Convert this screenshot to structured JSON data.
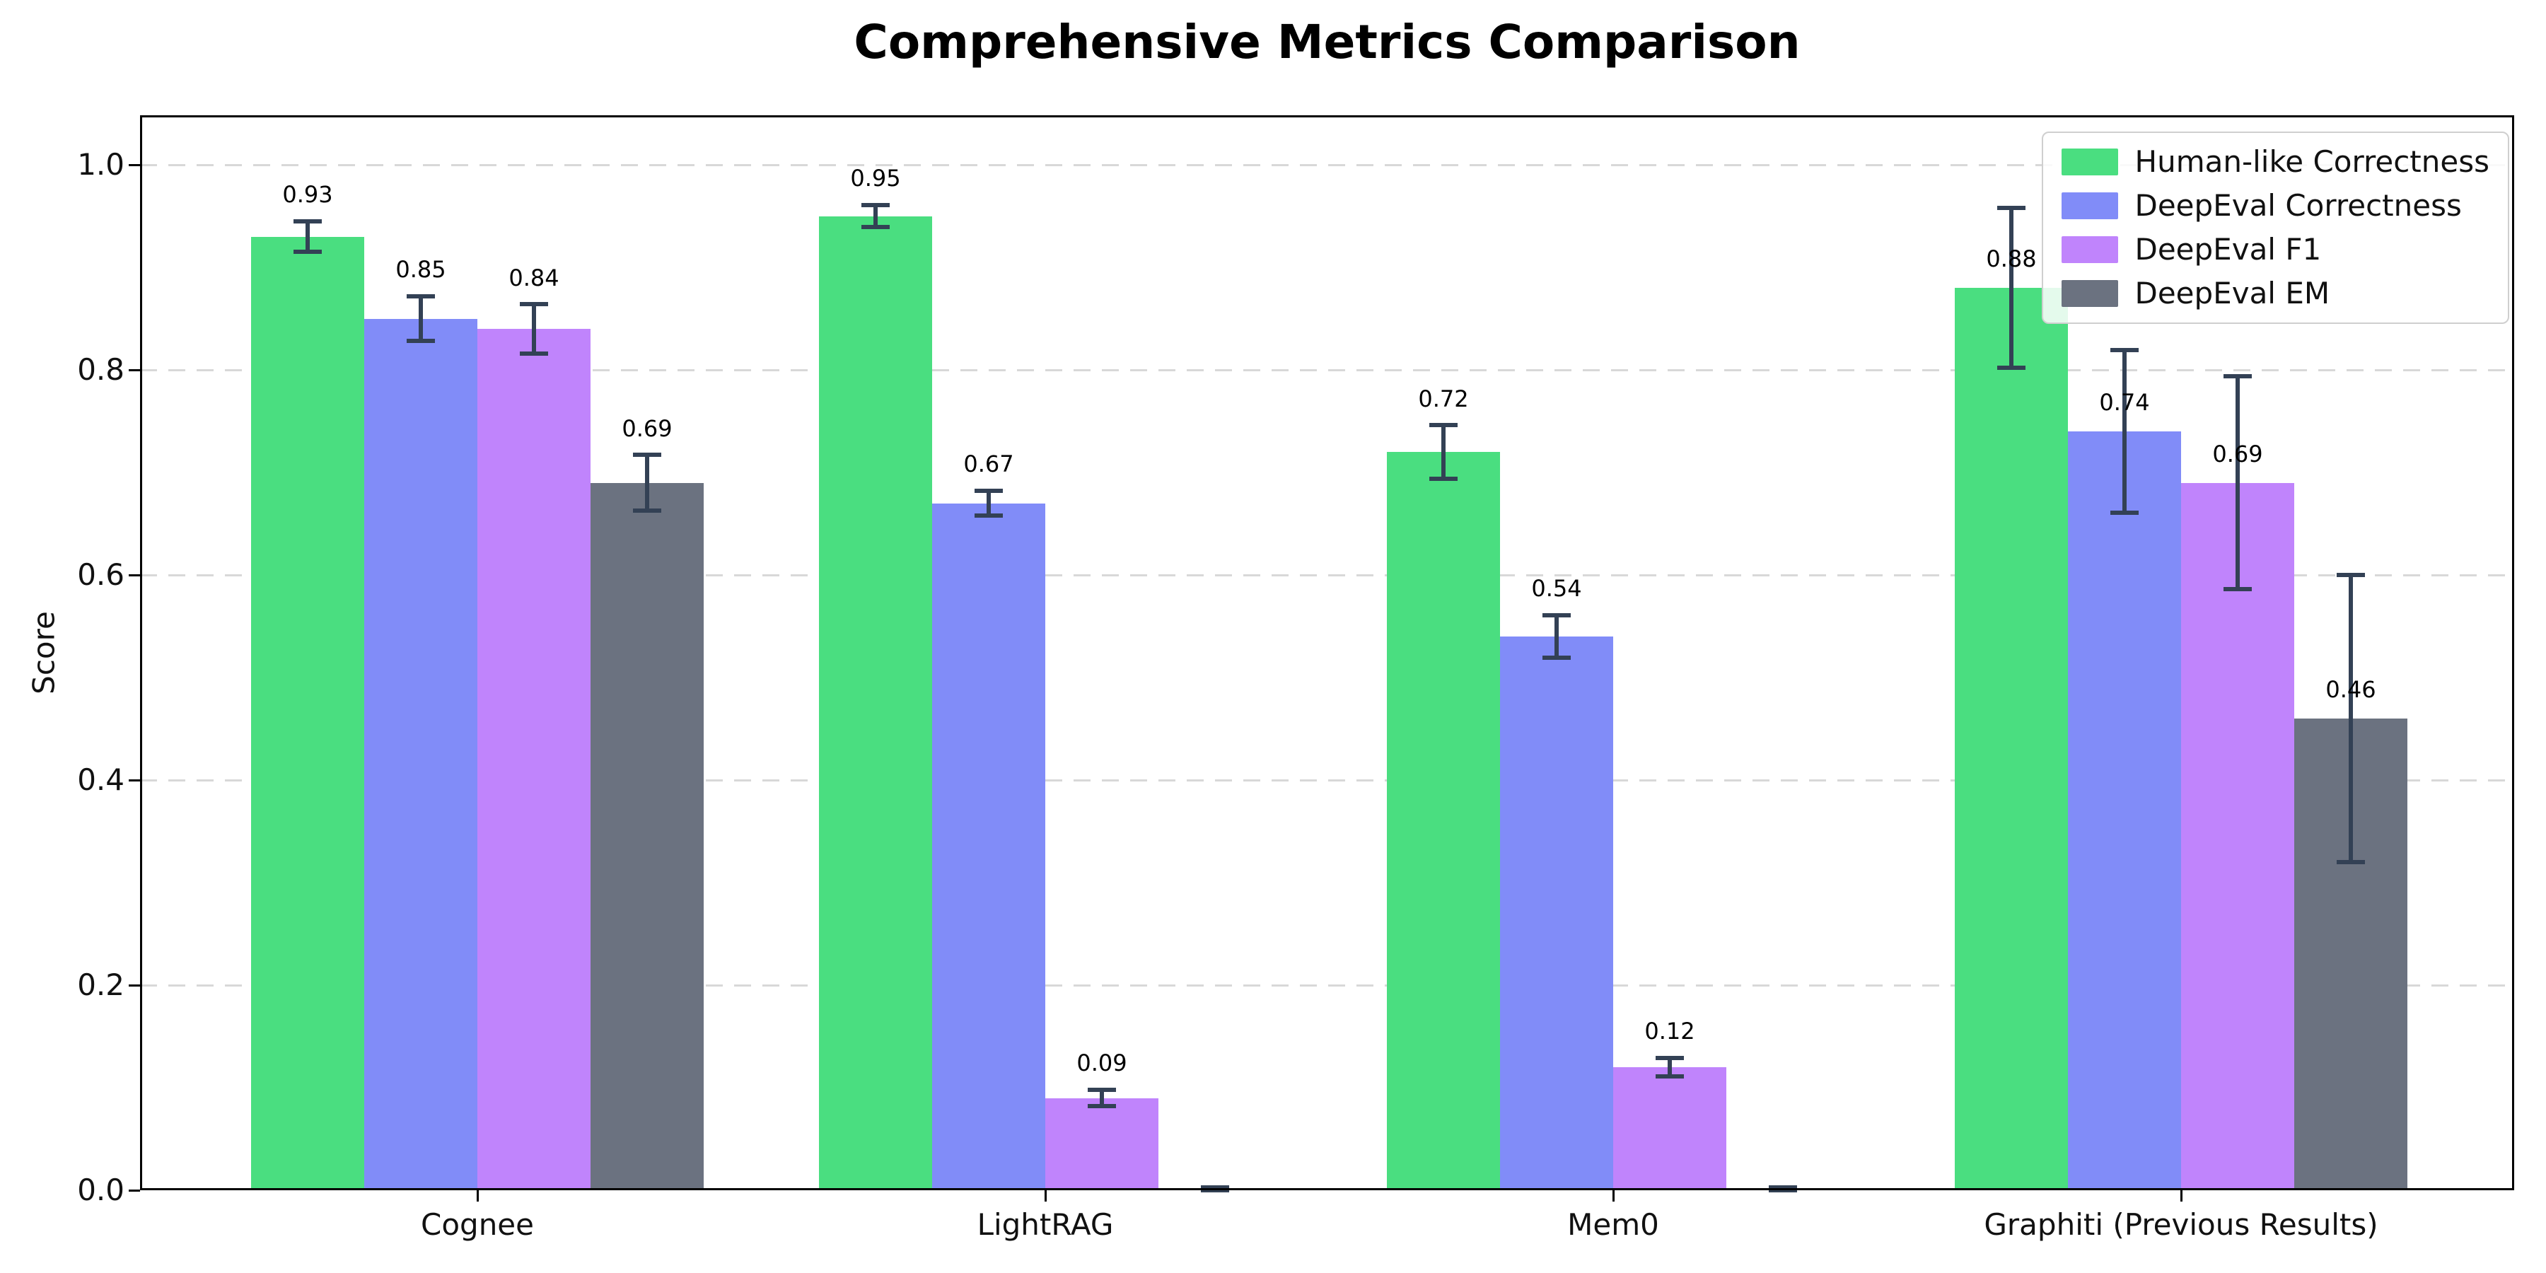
{
  "title": "Comprehensive Metrics Comparison",
  "chart_data": {
    "type": "bar",
    "title": "Comprehensive Metrics Comparison",
    "xlabel": "",
    "ylabel": "Score",
    "ylim": [
      0.0,
      1.05
    ],
    "yticks": [
      0.0,
      0.2,
      0.4,
      0.6,
      0.8,
      1.0
    ],
    "ytick_labels": [
      "0.0",
      "0.2",
      "0.4",
      "0.6",
      "0.8",
      "1.0"
    ],
    "grid": "horizontal dashed gridlines at each y tick",
    "legend_position": "upper right",
    "categories": [
      "Cognee",
      "LightRAG",
      "Mem0",
      "Graphiti (Previous Results)"
    ],
    "series": [
      {
        "name": "Human-like Correctness",
        "color": "#4ade80",
        "values": [
          0.93,
          0.95,
          0.72,
          0.88
        ],
        "labels": [
          "0.93",
          "0.95",
          "0.72",
          "0.88"
        ],
        "errors": [
          0.015,
          0.011,
          0.026,
          0.078
        ]
      },
      {
        "name": "DeepEval Correctness",
        "color": "#818cf8",
        "values": [
          0.85,
          0.67,
          0.54,
          0.74
        ],
        "labels": [
          "0.85",
          "0.67",
          "0.54",
          "0.74"
        ],
        "errors": [
          0.022,
          0.012,
          0.021,
          0.079
        ]
      },
      {
        "name": "DeepEval F1",
        "color": "#c084fc",
        "values": [
          0.84,
          0.09,
          0.12,
          0.69
        ],
        "labels": [
          "0.84",
          "0.09",
          "0.12",
          "0.69"
        ],
        "errors": [
          0.024,
          0.008,
          0.009,
          0.104
        ]
      },
      {
        "name": "DeepEval EM",
        "color": "#6b7280",
        "values": [
          0.69,
          0.0,
          0.0,
          0.46
        ],
        "labels": [
          "0.69",
          "",
          "",
          "0.46"
        ],
        "errors": [
          0.027,
          0.003,
          0.003,
          0.14
        ]
      }
    ],
    "error_bar_color": "#334155",
    "gridline_color": "#d8d8d8",
    "background_color": "#ffffff"
  }
}
